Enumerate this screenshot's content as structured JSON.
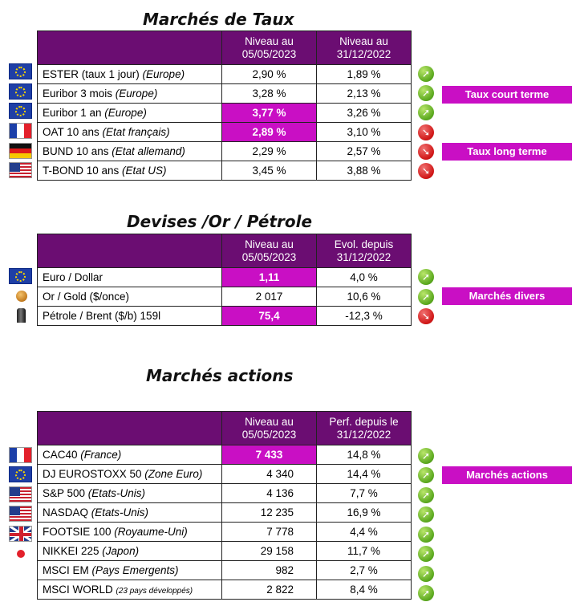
{
  "sections": {
    "taux": {
      "title": "Marchés de Taux",
      "header": {
        "col2": "Niveau au 05/05/2023",
        "col3": "Niveau au 31/12/2022"
      },
      "rows": [
        {
          "flag": "eu-flag",
          "name": "ESTER (taux 1 jour) ",
          "qual": "(Europe)",
          "v1": "2,90 %",
          "v2": "1,89 %",
          "trend": "up",
          "hl": false
        },
        {
          "flag": "eu-flag",
          "name": "Euribor 3 mois ",
          "qual": "(Europe)",
          "v1": "3,28 %",
          "v2": "2,13 %",
          "trend": "up",
          "hl": false
        },
        {
          "flag": "eu-flag",
          "name": "Euribor 1 an ",
          "qual": "(Europe)",
          "v1": "3,77 %",
          "v2": "3,26 %",
          "trend": "up",
          "hl": true
        },
        {
          "flag": "fr-flag",
          "name": "OAT 10 ans ",
          "qual": "(Etat français)",
          "v1": "2,89 %",
          "v2": "3,10 %",
          "trend": "down",
          "hl": true
        },
        {
          "flag": "de-flag",
          "name": "BUND 10 ans ",
          "qual": "(Etat allemand)",
          "v1": "2,29 %",
          "v2": "2,57 %",
          "trend": "down",
          "hl": false
        },
        {
          "flag": "us-flag",
          "name": "T-BOND 10 ans ",
          "qual": "(Etat US)",
          "v1": "3,45 %",
          "v2": "3,88 %",
          "trend": "down",
          "hl": false
        }
      ],
      "tags": [
        "Taux court terme",
        "Taux long terme"
      ]
    },
    "devises": {
      "title": "Devises /Or / Pétrole",
      "header": {
        "col2": "Niveau au 05/05/2023",
        "col3": "Evol. depuis 31/12/2022"
      },
      "rows": [
        {
          "flag": "eu-flag",
          "name": "Euro / Dollar",
          "qual": "",
          "v1": "1,11",
          "v2": "4,0 %",
          "trend": "up",
          "hl": true
        },
        {
          "flag": "gold-coin-icon",
          "name": "Or / Gold ($/once)",
          "qual": "",
          "v1": "2 017",
          "v2": "10,6 %",
          "trend": "up",
          "hl": false
        },
        {
          "flag": "oil-barrel-icon",
          "name": "Pétrole / Brent ($/b) 159l",
          "qual": "",
          "v1": "75,4",
          "v2": "-12,3 %",
          "trend": "down",
          "hl": true
        }
      ],
      "tags": [
        "Marchés divers"
      ]
    },
    "actions": {
      "title": "Marchés actions",
      "header": {
        "col2": "Niveau au 05/05/2023",
        "col3": "Perf. depuis le 31/12/2022"
      },
      "rows": [
        {
          "flag": "fr-flag",
          "name": "CAC40 ",
          "qual": "(France)",
          "small": "",
          "v1": "7 433",
          "v2": "14,8 %",
          "trend": "up",
          "hl": true
        },
        {
          "flag": "eu-flag",
          "name": "DJ EUROSTOXX 50 ",
          "qual": "(Zone Euro)",
          "small": "",
          "v1": "4 340",
          "v2": "14,4 %",
          "trend": "up",
          "hl": false
        },
        {
          "flag": "us-flag",
          "name": "S&P 500 ",
          "qual": "(Etats-Unis)",
          "small": "",
          "v1": "4 136",
          "v2": "7,7 %",
          "trend": "up",
          "hl": false
        },
        {
          "flag": "us-flag",
          "name": "NASDAQ ",
          "qual": "(Etats-Unis)",
          "small": "",
          "v1": "12 235",
          "v2": "16,9 %",
          "trend": "up",
          "hl": false
        },
        {
          "flag": "uk-flag",
          "name": "FOOTSIE 100 ",
          "qual": "(Royaume-Uni)",
          "small": "",
          "v1": "7 778",
          "v2": "4,4 %",
          "trend": "up",
          "hl": false
        },
        {
          "flag": "jp-flag",
          "name": "NIKKEI 225 ",
          "qual": "(Japon)",
          "small": "",
          "v1": "29 158",
          "v2": "11,7 %",
          "trend": "up",
          "hl": false
        },
        {
          "flag": "",
          "name": "MSCI EM ",
          "qual": "(Pays Emergents)",
          "small": "",
          "v1": "982",
          "v2": "2,7 %",
          "trend": "up",
          "hl": false
        },
        {
          "flag": "",
          "name": "MSCI WORLD ",
          "qual": "",
          "small": "(23 pays développés)",
          "v1": "2 822",
          "v2": "8,4 %",
          "trend": "up",
          "hl": false
        }
      ],
      "tags": [
        "Marchés actions"
      ]
    }
  },
  "colors": {
    "header_purple": "#6b0d72",
    "highlight_magenta": "#c90fc4",
    "trend_up": "#5aa81e",
    "trend_down": "#d01616"
  }
}
